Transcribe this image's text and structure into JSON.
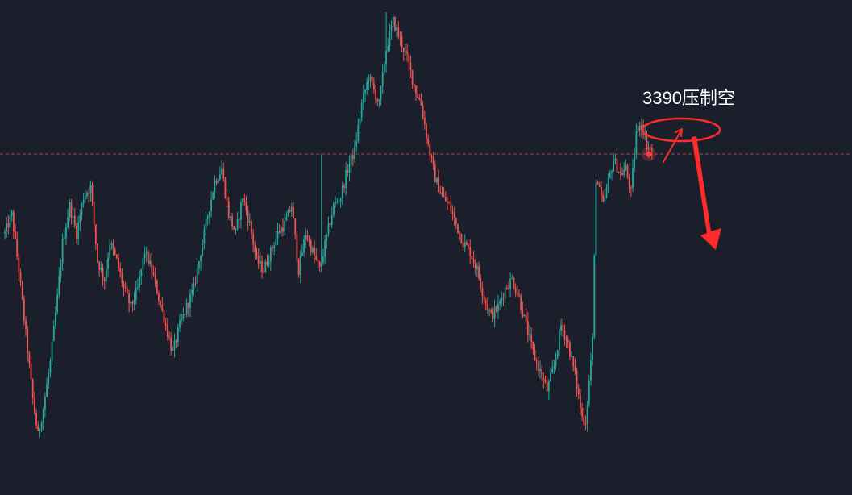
{
  "chart_data": {
    "type": "candlestick",
    "title": "",
    "xlabel": "",
    "ylabel": "",
    "grid": false,
    "colors": {
      "background": "#1b1f2c",
      "up": "#26a69a",
      "down": "#ef5350",
      "reference_line": "#c0504d",
      "annotation": "#ff2a2a",
      "annotation_text": "#ffffff",
      "current_marker": "#ff3b3b"
    },
    "waypoints": [
      [
        0,
        3340
      ],
      [
        4,
        3350
      ],
      [
        8,
        3320
      ],
      [
        12,
        3285
      ],
      [
        16,
        3250
      ],
      [
        19,
        3230
      ],
      [
        22,
        3245
      ],
      [
        26,
        3270
      ],
      [
        30,
        3305
      ],
      [
        33,
        3335
      ],
      [
        37,
        3355
      ],
      [
        41,
        3340
      ],
      [
        45,
        3360
      ],
      [
        49,
        3365
      ],
      [
        53,
        3325
      ],
      [
        57,
        3315
      ],
      [
        60,
        3335
      ],
      [
        64,
        3325
      ],
      [
        68,
        3310
      ],
      [
        72,
        3300
      ],
      [
        76,
        3310
      ],
      [
        80,
        3330
      ],
      [
        84,
        3320
      ],
      [
        88,
        3305
      ],
      [
        92,
        3290
      ],
      [
        96,
        3275
      ],
      [
        100,
        3290
      ],
      [
        104,
        3300
      ],
      [
        108,
        3310
      ],
      [
        112,
        3330
      ],
      [
        116,
        3350
      ],
      [
        120,
        3368
      ],
      [
        124,
        3375
      ],
      [
        128,
        3350
      ],
      [
        132,
        3340
      ],
      [
        136,
        3360
      ],
      [
        140,
        3345
      ],
      [
        144,
        3325
      ],
      [
        148,
        3320
      ],
      [
        152,
        3330
      ],
      [
        156,
        3340
      ],
      [
        160,
        3345
      ],
      [
        164,
        3355
      ],
      [
        168,
        3320
      ],
      [
        172,
        3340
      ],
      [
        176,
        3330
      ],
      [
        180,
        3320
      ],
      [
        184,
        3338
      ],
      [
        188,
        3355
      ],
      [
        192,
        3360
      ],
      [
        196,
        3375
      ],
      [
        200,
        3385
      ],
      [
        204,
        3410
      ],
      [
        208,
        3425
      ],
      [
        212,
        3415
      ],
      [
        214,
        3410
      ],
      [
        218,
        3440
      ],
      [
        222,
        3455
      ],
      [
        226,
        3445
      ],
      [
        230,
        3435
      ],
      [
        234,
        3420
      ],
      [
        238,
        3410
      ],
      [
        242,
        3388
      ],
      [
        246,
        3370
      ],
      [
        250,
        3360
      ],
      [
        254,
        3355
      ],
      [
        258,
        3345
      ],
      [
        262,
        3335
      ],
      [
        266,
        3330
      ],
      [
        270,
        3320
      ],
      [
        274,
        3305
      ],
      [
        278,
        3295
      ],
      [
        282,
        3300
      ],
      [
        286,
        3310
      ],
      [
        290,
        3315
      ],
      [
        294,
        3305
      ],
      [
        298,
        3290
      ],
      [
        302,
        3275
      ],
      [
        306,
        3265
      ],
      [
        310,
        3255
      ],
      [
        314,
        3268
      ],
      [
        318,
        3290
      ],
      [
        322,
        3280
      ],
      [
        326,
        3263
      ],
      [
        330,
        3240
      ],
      [
        332,
        3238
      ],
      [
        334,
        3260
      ],
      [
        336,
        3282
      ],
      [
        338,
        3370
      ],
      [
        342,
        3355
      ],
      [
        345,
        3368
      ],
      [
        348,
        3380
      ],
      [
        352,
        3372
      ],
      [
        355,
        3375
      ],
      [
        358,
        3362
      ],
      [
        361,
        3395
      ],
      [
        364,
        3400
      ],
      [
        367,
        3388
      ],
      [
        370,
        3385
      ]
    ],
    "reference_line": {
      "value": 3383,
      "label": ""
    },
    "annotation": {
      "text": "3390压制空",
      "level": 3390,
      "arrow": "down"
    }
  }
}
